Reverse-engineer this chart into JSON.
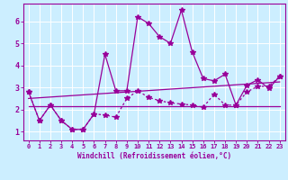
{
  "xlabel": "Windchill (Refroidissement éolien,°C)",
  "background_color": "#cceeff",
  "grid_color": "#ffffff",
  "line_color": "#990099",
  "xlim": [
    -0.5,
    23.5
  ],
  "ylim": [
    0.6,
    6.8
  ],
  "xticks": [
    0,
    1,
    2,
    3,
    4,
    5,
    6,
    7,
    8,
    9,
    10,
    11,
    12,
    13,
    14,
    15,
    16,
    17,
    18,
    19,
    20,
    21,
    22,
    23
  ],
  "yticks": [
    1,
    2,
    3,
    4,
    5,
    6
  ],
  "series1_x": [
    0,
    1,
    2,
    3,
    4,
    5,
    6,
    7,
    8,
    9,
    10,
    11,
    12,
    13,
    14,
    15,
    16,
    17,
    18,
    19,
    20,
    21,
    22,
    23
  ],
  "series1_y": [
    2.8,
    1.5,
    2.2,
    1.5,
    1.1,
    1.1,
    1.8,
    4.5,
    2.85,
    2.85,
    6.2,
    5.9,
    5.3,
    5.0,
    6.5,
    4.6,
    3.4,
    3.3,
    3.6,
    2.2,
    3.1,
    3.35,
    2.95,
    3.5
  ],
  "series2_x": [
    0,
    1,
    2,
    3,
    4,
    5,
    6,
    7,
    8,
    9,
    10,
    11,
    12,
    13,
    14,
    15,
    16,
    17,
    18,
    19,
    20,
    21,
    22,
    23
  ],
  "series2_y": [
    2.8,
    1.5,
    2.2,
    1.5,
    1.1,
    1.1,
    1.8,
    1.75,
    1.65,
    2.5,
    2.85,
    2.55,
    2.4,
    2.3,
    2.25,
    2.2,
    2.1,
    2.7,
    2.2,
    2.2,
    2.8,
    3.05,
    3.05,
    3.5
  ],
  "series3_x": [
    0,
    23
  ],
  "series3_y": [
    2.15,
    2.15
  ],
  "series4_x": [
    0,
    23
  ],
  "series4_y": [
    2.5,
    3.25
  ]
}
